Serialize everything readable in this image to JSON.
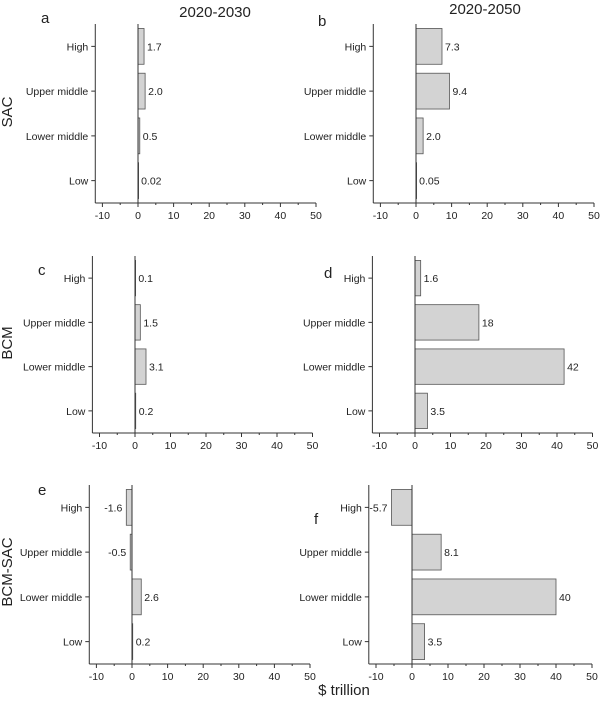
{
  "column_titles": [
    "2020-2030",
    "2020-2050"
  ],
  "row_titles": [
    "SAC",
    "BCM",
    "BCM-SAC"
  ],
  "x_axis_title": "$ trillion",
  "colors": {
    "bar_fill": "#d3d3d3",
    "bar_stroke": "#555555",
    "axis": "#333333"
  },
  "chart_data": [
    {
      "type": "bar",
      "orientation": "horizontal",
      "panel": "a",
      "categories": [
        "High",
        "Upper middle",
        "Lower middle",
        "Low"
      ],
      "values": [
        1.7,
        2.0,
        0.5,
        0.02
      ],
      "value_labels": [
        "1.7",
        "2.0",
        "0.5",
        "0.02"
      ],
      "xlim": [
        -12,
        50
      ],
      "xticks": [
        -10,
        0,
        10,
        20,
        30,
        40,
        50
      ],
      "grid": false
    },
    {
      "type": "bar",
      "orientation": "horizontal",
      "panel": "b",
      "categories": [
        "High",
        "Upper middle",
        "Lower middle",
        "Low"
      ],
      "values": [
        7.3,
        9.4,
        2.0,
        0.05
      ],
      "value_labels": [
        "7.3",
        "9.4",
        "2.0",
        "0.05"
      ],
      "xlim": [
        -12,
        50
      ],
      "xticks": [
        -10,
        0,
        10,
        20,
        30,
        40,
        50
      ],
      "grid": false
    },
    {
      "type": "bar",
      "orientation": "horizontal",
      "panel": "c",
      "categories": [
        "High",
        "Upper middle",
        "Lower middle",
        "Low"
      ],
      "values": [
        0.1,
        1.5,
        3.1,
        0.2
      ],
      "value_labels": [
        "0.1",
        "1.5",
        "3.1",
        "0.2"
      ],
      "xlim": [
        -12,
        50
      ],
      "xticks": [
        -10,
        0,
        10,
        20,
        30,
        40,
        50
      ],
      "grid": false
    },
    {
      "type": "bar",
      "orientation": "horizontal",
      "panel": "d",
      "categories": [
        "High",
        "Upper middle",
        "Lower middle",
        "Low"
      ],
      "values": [
        1.6,
        18,
        42,
        3.5
      ],
      "value_labels": [
        "1.6",
        "18",
        "42",
        "3.5"
      ],
      "xlim": [
        -12,
        50
      ],
      "xticks": [
        -10,
        0,
        10,
        20,
        30,
        40,
        50
      ],
      "grid": false
    },
    {
      "type": "bar",
      "orientation": "horizontal",
      "panel": "e",
      "categories": [
        "High",
        "Upper middle",
        "Lower middle",
        "Low"
      ],
      "values": [
        -1.6,
        -0.5,
        2.6,
        0.2
      ],
      "value_labels": [
        "-1.6",
        "-0.5",
        "2.6",
        "0.2"
      ],
      "xlim": [
        -12,
        50
      ],
      "xticks": [
        -10,
        0,
        10,
        20,
        30,
        40,
        50
      ],
      "grid": false
    },
    {
      "type": "bar",
      "orientation": "horizontal",
      "panel": "f",
      "categories": [
        "High",
        "Upper middle",
        "Lower middle",
        "Low"
      ],
      "values": [
        -5.7,
        8.1,
        40,
        3.5
      ],
      "value_labels": [
        "-5.7",
        "8.1",
        "40",
        "3.5"
      ],
      "xlim": [
        -12,
        50
      ],
      "xticks": [
        -10,
        0,
        10,
        20,
        30,
        40,
        50
      ],
      "grid": false
    }
  ]
}
